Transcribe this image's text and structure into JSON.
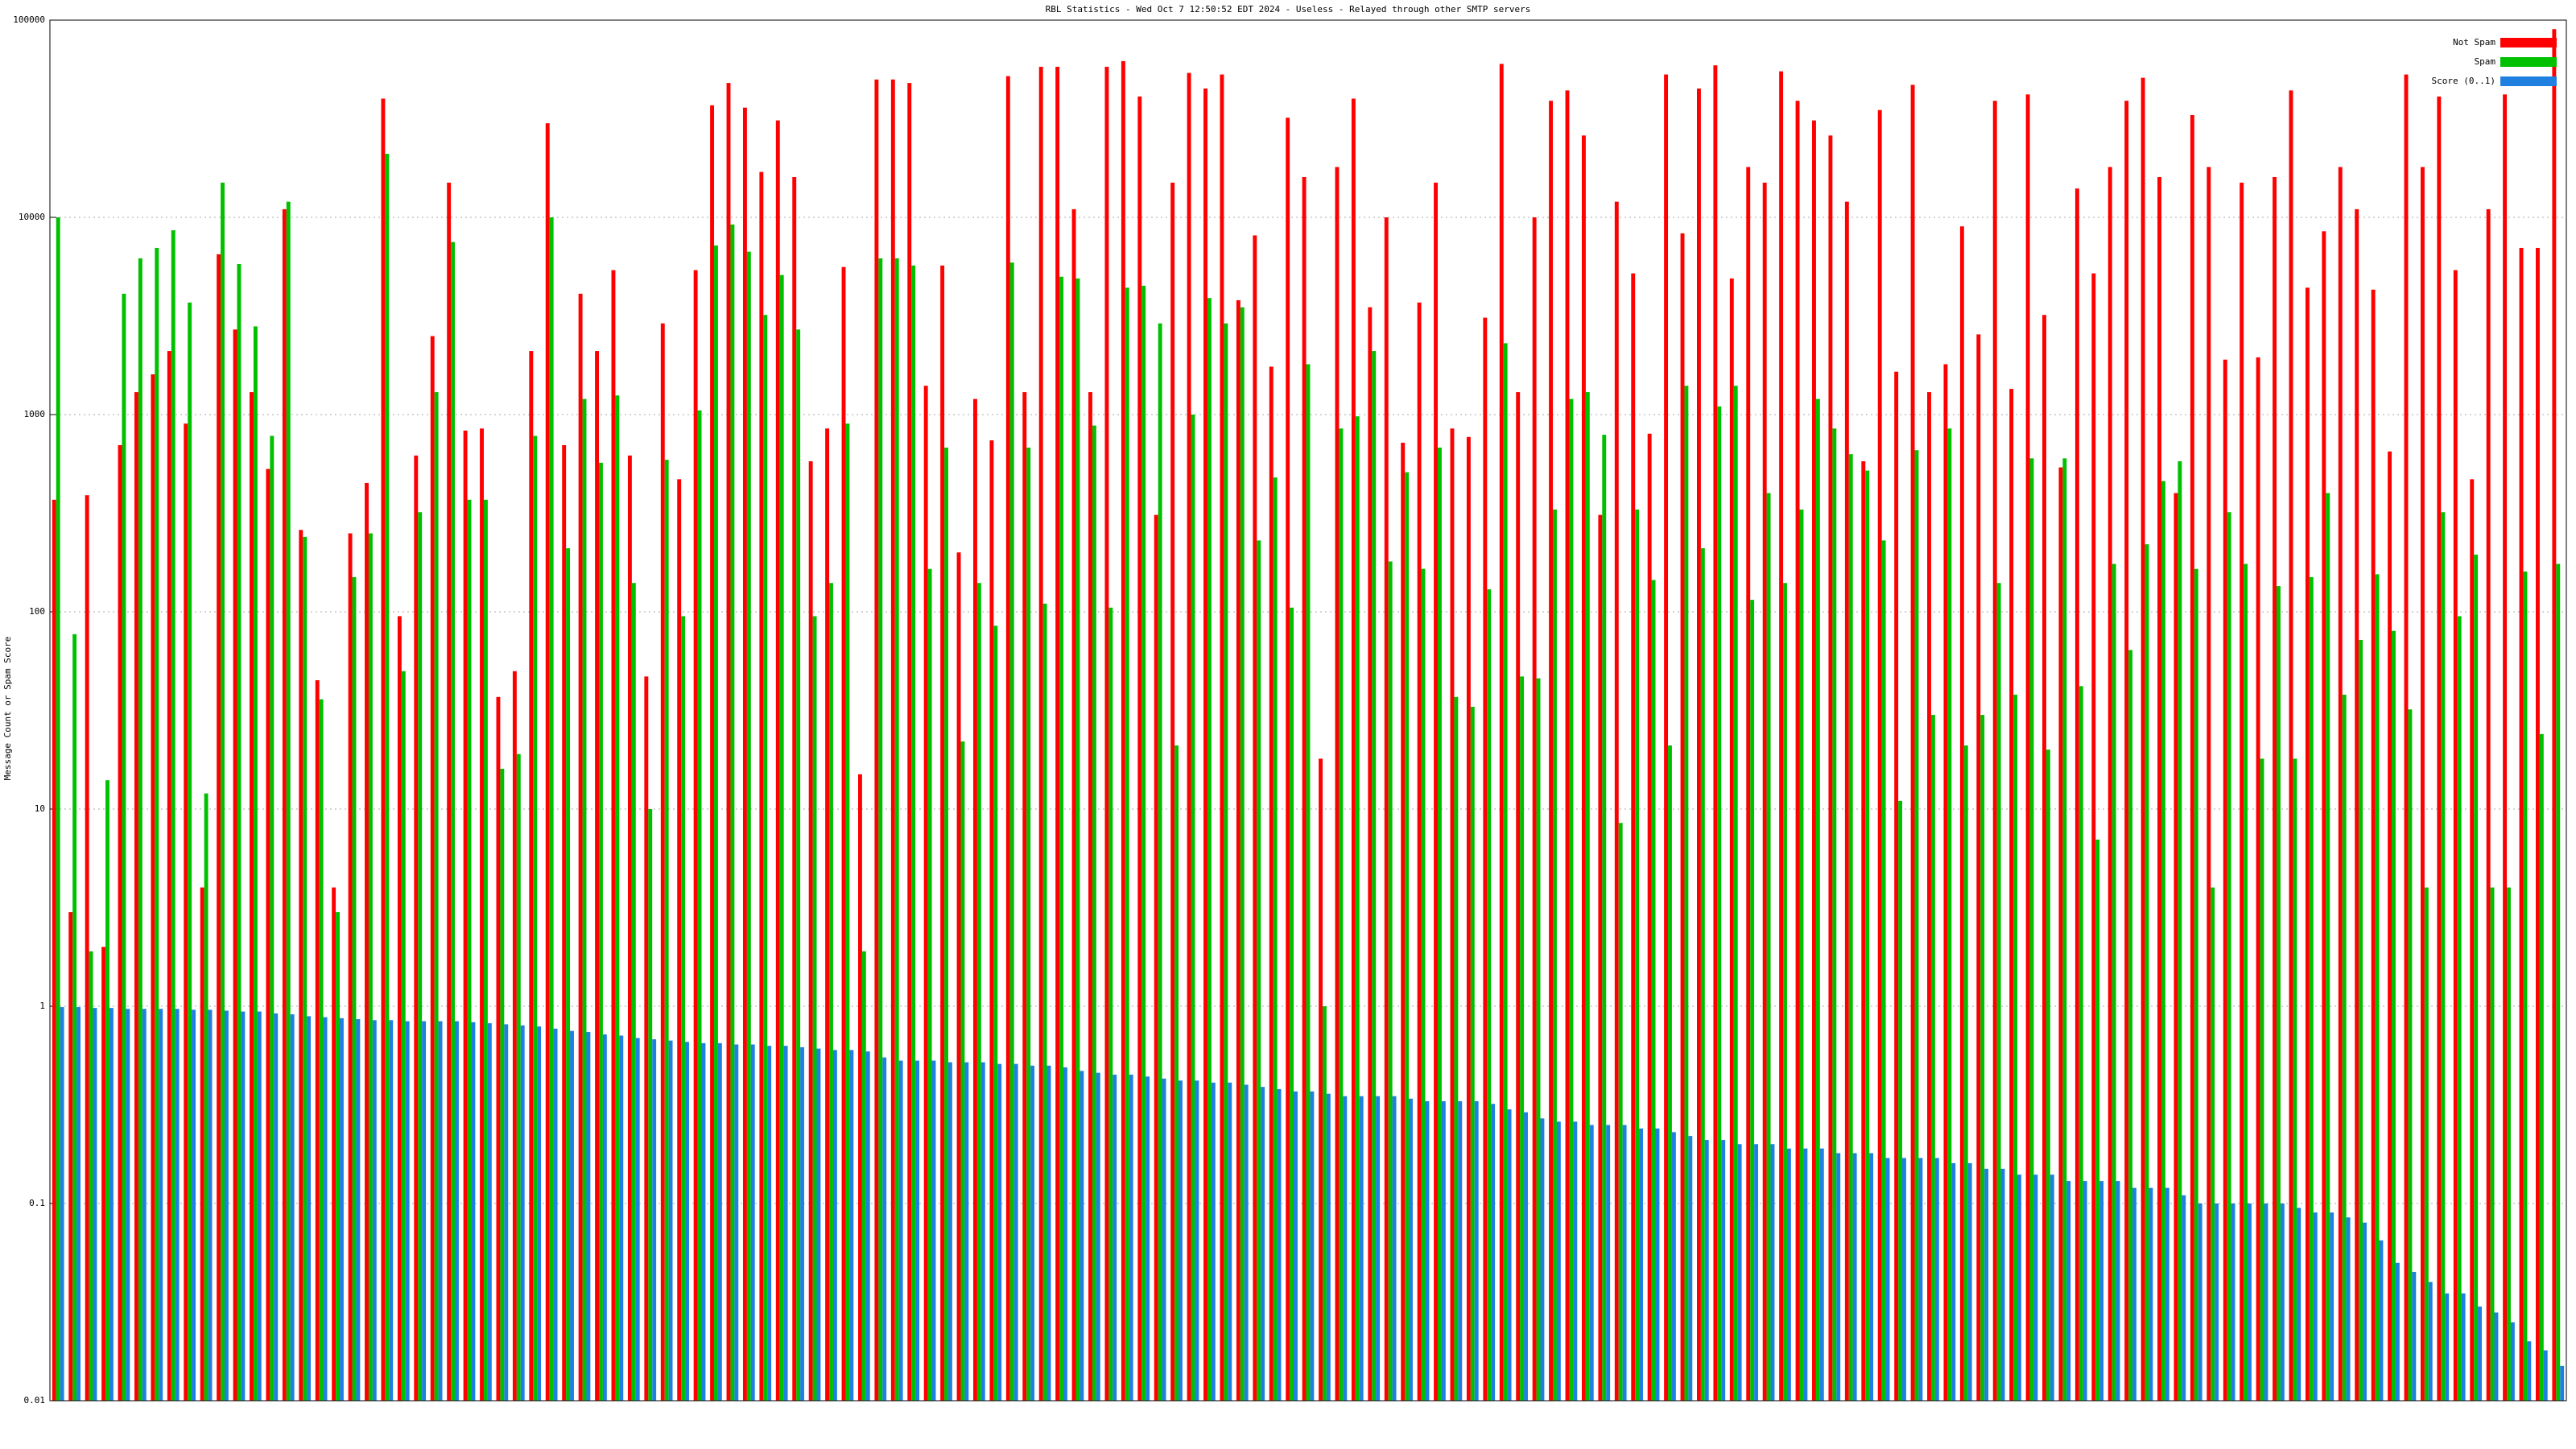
{
  "chart_data": {
    "type": "bar",
    "log_scale": true,
    "grid": true,
    "legend": "top-right",
    "title": "RBL Statistics - Wed Oct  7 12:50:52 EDT 2024 - Useless - Relayed through other SMTP servers",
    "ylabel": "Message Count or Spam Score",
    "ylim": [
      0.01,
      100000
    ],
    "yticks": [
      0.01,
      0.1,
      1,
      10,
      100,
      1000,
      10000,
      100000
    ],
    "series": [
      {
        "name": "Not Spam",
        "color": "#ff0000",
        "values": [
          370,
          3,
          390,
          2,
          700,
          1300,
          1600,
          2100,
          900,
          4,
          6500,
          2700,
          1300,
          530,
          11000,
          260,
          45,
          4,
          250,
          450,
          40000,
          95,
          620,
          2500,
          15000,
          830,
          850,
          37,
          50,
          2100,
          30000,
          700,
          4100,
          2100,
          5400,
          620,
          47,
          2900,
          470,
          5400,
          37000,
          48000,
          36000,
          17000,
          31000,
          16000,
          580,
          850,
          5600,
          15,
          50000,
          50000,
          48000,
          1400,
          5700,
          200,
          1200,
          740,
          52000,
          1300,
          58000,
          58000,
          11000,
          1300,
          58000,
          62000,
          41000,
          310,
          15000,
          54000,
          45000,
          53000,
          3800,
          8100,
          1750,
          32000,
          16000,
          18,
          18000,
          40000,
          3500,
          10000,
          720,
          3700,
          15000,
          850,
          770,
          3100,
          60000,
          1300,
          10000,
          39000,
          44000,
          26000,
          310,
          12000,
          5200,
          800,
          53000,
          8300,
          45000,
          59000,
          4900,
          18000,
          15000,
          55000,
          39000,
          31000,
          26000,
          12000,
          580,
          35000,
          1650,
          47000,
          1300,
          1800,
          9000,
          2550,
          39000,
          1350,
          42000,
          3200,
          540,
          14000,
          5200,
          18000,
          39000,
          51000,
          16000,
          400,
          33000,
          18000,
          1900,
          15000,
          1950,
          16000,
          44000,
          4400,
          8500,
          18000,
          11000,
          4300,
          650,
          53000,
          18000,
          41000,
          5400,
          470,
          11000,
          42000,
          7000,
          7000,
          90000
        ]
      },
      {
        "name": "Spam",
        "color": "#00c000",
        "values": [
          10000,
          77,
          1.9,
          14,
          4100,
          6200,
          7000,
          8600,
          3700,
          12,
          15000,
          5800,
          2800,
          780,
          12000,
          240,
          36,
          3,
          150,
          250,
          21000,
          50,
          320,
          1300,
          7500,
          370,
          370,
          16,
          19,
          780,
          10000,
          210,
          1200,
          570,
          1250,
          140,
          10,
          590,
          95,
          1050,
          7200,
          9200,
          6700,
          3200,
          5100,
          2700,
          95,
          140,
          900,
          1.9,
          6200,
          6200,
          5700,
          165,
          680,
          22,
          140,
          85,
          5900,
          680,
          110,
          5000,
          4900,
          880,
          105,
          4400,
          4500,
          2900,
          21,
          1000,
          3900,
          2900,
          3500,
          230,
          480,
          105,
          1800,
          1,
          850,
          980,
          2100,
          180,
          510,
          165,
          680,
          37,
          33,
          130,
          2300,
          47,
          46,
          330,
          1200,
          1300,
          790,
          8.5,
          330,
          145,
          21,
          1400,
          210,
          1100,
          1400,
          115,
          400,
          140,
          330,
          1200,
          850,
          630,
          520,
          230,
          11,
          660,
          30,
          850,
          21,
          30,
          140,
          38,
          600,
          20,
          600,
          42,
          7,
          175,
          64,
          220,
          460,
          580,
          165,
          4,
          320,
          175,
          18,
          135,
          18,
          150,
          400,
          38,
          72,
          155,
          80,
          32,
          4,
          320,
          95,
          195,
          4,
          4,
          160,
          24,
          175
        ]
      },
      {
        "name": "Score (0..1)",
        "color": "#2080e0",
        "values": [
          0.99,
          0.99,
          0.98,
          0.98,
          0.97,
          0.97,
          0.97,
          0.97,
          0.96,
          0.96,
          0.95,
          0.94,
          0.94,
          0.92,
          0.91,
          0.89,
          0.88,
          0.87,
          0.86,
          0.85,
          0.85,
          0.84,
          0.84,
          0.84,
          0.84,
          0.83,
          0.82,
          0.81,
          0.8,
          0.79,
          0.77,
          0.75,
          0.74,
          0.72,
          0.71,
          0.69,
          0.68,
          0.67,
          0.66,
          0.65,
          0.65,
          0.64,
          0.64,
          0.63,
          0.63,
          0.62,
          0.61,
          0.6,
          0.6,
          0.59,
          0.55,
          0.53,
          0.53,
          0.53,
          0.52,
          0.52,
          0.52,
          0.51,
          0.51,
          0.5,
          0.5,
          0.49,
          0.47,
          0.46,
          0.45,
          0.45,
          0.44,
          0.43,
          0.42,
          0.42,
          0.41,
          0.41,
          0.4,
          0.39,
          0.38,
          0.37,
          0.37,
          0.36,
          0.35,
          0.35,
          0.35,
          0.35,
          0.34,
          0.33,
          0.33,
          0.33,
          0.33,
          0.32,
          0.3,
          0.29,
          0.27,
          0.26,
          0.26,
          0.25,
          0.25,
          0.25,
          0.24,
          0.24,
          0.23,
          0.22,
          0.21,
          0.21,
          0.2,
          0.2,
          0.2,
          0.19,
          0.19,
          0.19,
          0.18,
          0.18,
          0.18,
          0.17,
          0.17,
          0.17,
          0.17,
          0.16,
          0.16,
          0.15,
          0.15,
          0.14,
          0.14,
          0.14,
          0.13,
          0.13,
          0.13,
          0.13,
          0.12,
          0.12,
          0.12,
          0.11,
          0.1,
          0.1,
          0.1,
          0.1,
          0.1,
          0.1,
          0.095,
          0.09,
          0.09,
          0.085,
          0.08,
          0.065,
          0.05,
          0.045,
          0.04,
          0.035,
          0.035,
          0.03,
          0.028,
          0.025,
          0.02,
          0.018,
          0.015
        ]
      }
    ]
  }
}
